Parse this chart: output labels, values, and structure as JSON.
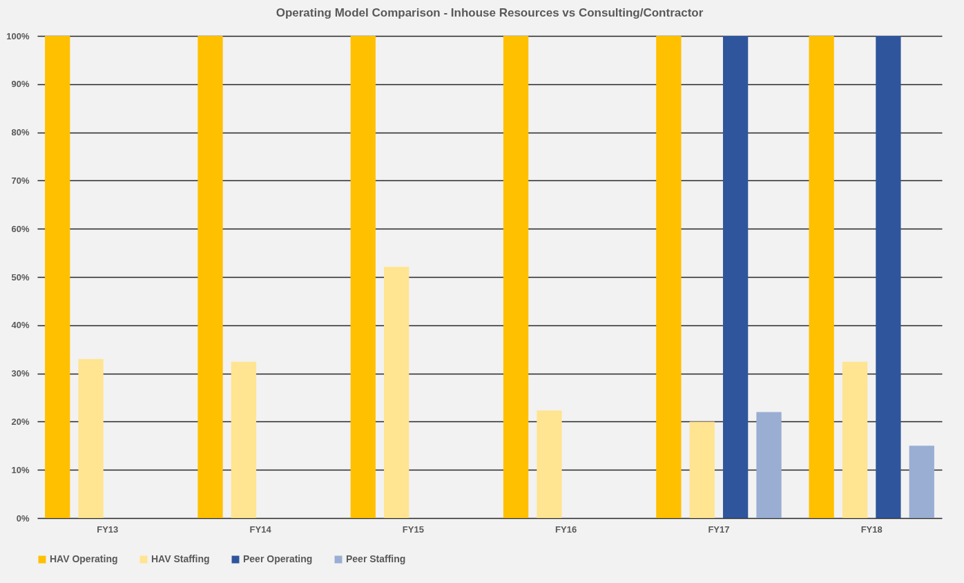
{
  "chart_data": {
    "type": "bar",
    "title": "Operating Model Comparison - Inhouse Resources vs Consulting/Contractor",
    "categories": [
      "FY13",
      "FY14",
      "FY15",
      "FY16",
      "FY17",
      "FY18"
    ],
    "series": [
      {
        "name": "HAV Operating",
        "color": "#ffc000",
        "values": [
          100,
          100,
          100,
          100,
          100,
          100
        ]
      },
      {
        "name": "HAV Staffing",
        "color": "#ffe491",
        "values": [
          33,
          32.4,
          52.1,
          22.3,
          20,
          32.4
        ]
      },
      {
        "name": "Peer Operating",
        "color": "#2f569c",
        "values": [
          null,
          null,
          null,
          null,
          100,
          100
        ]
      },
      {
        "name": "Peer Staffing",
        "color": "#9aaed3",
        "values": [
          null,
          null,
          null,
          null,
          22,
          15
        ]
      }
    ],
    "ylim": [
      0,
      100
    ],
    "yticks": [
      {
        "value": 0,
        "label": "0%"
      },
      {
        "value": 10,
        "label": "10%"
      },
      {
        "value": 20,
        "label": "20%"
      },
      {
        "value": 30,
        "label": "30%"
      },
      {
        "value": 40,
        "label": "40%"
      },
      {
        "value": 50,
        "label": "50%"
      },
      {
        "value": 60,
        "label": "60%"
      },
      {
        "value": 70,
        "label": "70%"
      },
      {
        "value": 80,
        "label": "80%"
      },
      {
        "value": 90,
        "label": "90%"
      },
      {
        "value": 100,
        "label": "100%"
      }
    ],
    "grid": "y",
    "legend": "bottom"
  }
}
